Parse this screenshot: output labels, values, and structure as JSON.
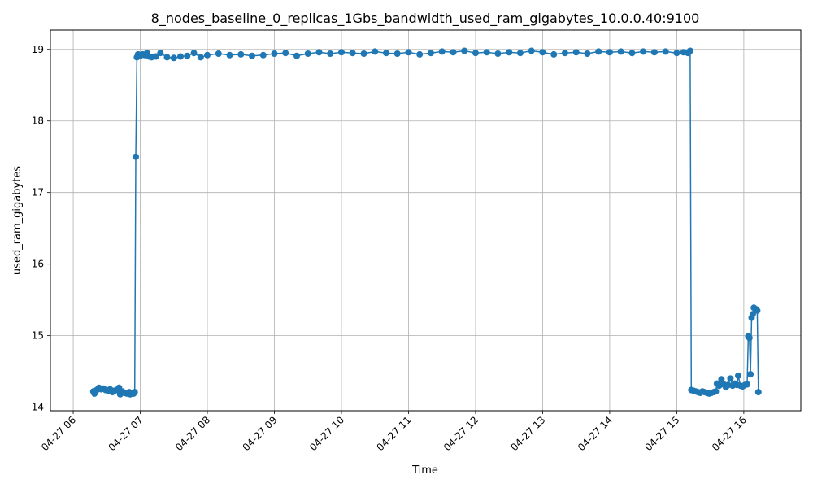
{
  "chart_data": {
    "type": "line",
    "title": "8_nodes_baseline_0_replicas_1Gbs_bandwidth_used_ram_gigabytes_10.0.0.40:9100",
    "xlabel": "Time",
    "ylabel": "used_ram_gigabytes",
    "x_ticks": [
      "04-27 06",
      "04-27 07",
      "04-27 08",
      "04-27 09",
      "04-27 10",
      "04-27 11",
      "04-27 12",
      "04-27 13",
      "04-27 14",
      "04-27 15",
      "04-27 16"
    ],
    "x_tick_hours": [
      6,
      7,
      8,
      9,
      10,
      11,
      12,
      13,
      14,
      15,
      16
    ],
    "xlim_hours": [
      5.66,
      16.85
    ],
    "y_ticks": [
      14,
      15,
      16,
      17,
      18,
      19
    ],
    "ylim": [
      13.95,
      19.27
    ],
    "grid": true,
    "legend": "none",
    "marker": "circle",
    "line_color": "#1f77b4",
    "series": [
      {
        "name": "",
        "points": [
          [
            "04-27 06:18",
            14.22
          ],
          [
            "04-27 06:19",
            14.19
          ],
          [
            "04-27 06:21",
            14.24
          ],
          [
            "04-27 06:23",
            14.27
          ],
          [
            "04-27 06:25",
            14.25
          ],
          [
            "04-27 06:27",
            14.26
          ],
          [
            "04-27 06:29",
            14.24
          ],
          [
            "04-27 06:31",
            14.23
          ],
          [
            "04-27 06:33",
            14.25
          ],
          [
            "04-27 06:35",
            14.21
          ],
          [
            "04-27 06:37",
            14.23
          ],
          [
            "04-27 06:39",
            14.24
          ],
          [
            "04-27 06:41",
            14.27
          ],
          [
            "04-27 06:42",
            14.18
          ],
          [
            "04-27 06:44",
            14.22
          ],
          [
            "04-27 06:46",
            14.2
          ],
          [
            "04-27 06:48",
            14.19
          ],
          [
            "04-27 06:50",
            14.21
          ],
          [
            "04-27 06:51",
            14.18
          ],
          [
            "04-27 06:53",
            14.2
          ],
          [
            "04-27 06:54",
            14.19
          ],
          [
            "04-27 06:55",
            14.21
          ],
          [
            "04-27 06:56",
            17.5
          ],
          [
            "04-27 06:57",
            18.89
          ],
          [
            "04-27 06:58",
            18.93
          ],
          [
            "04-27 07:00",
            18.91
          ],
          [
            "04-27 07:02",
            18.93
          ],
          [
            "04-27 07:04",
            18.92
          ],
          [
            "04-27 07:06",
            18.95
          ],
          [
            "04-27 07:08",
            18.9
          ],
          [
            "04-27 07:10",
            18.89
          ],
          [
            "04-27 07:14",
            18.9
          ],
          [
            "04-27 07:18",
            18.95
          ],
          [
            "04-27 07:24",
            18.89
          ],
          [
            "04-27 07:30",
            18.88
          ],
          [
            "04-27 07:36",
            18.9
          ],
          [
            "04-27 07:42",
            18.91
          ],
          [
            "04-27 07:48",
            18.95
          ],
          [
            "04-27 07:54",
            18.89
          ],
          [
            "04-27 08:00",
            18.92
          ],
          [
            "04-27 08:10",
            18.94
          ],
          [
            "04-27 08:20",
            18.92
          ],
          [
            "04-27 08:30",
            18.93
          ],
          [
            "04-27 08:40",
            18.91
          ],
          [
            "04-27 08:50",
            18.92
          ],
          [
            "04-27 09:00",
            18.94
          ],
          [
            "04-27 09:10",
            18.95
          ],
          [
            "04-27 09:20",
            18.91
          ],
          [
            "04-27 09:30",
            18.94
          ],
          [
            "04-27 09:40",
            18.96
          ],
          [
            "04-27 09:50",
            18.94
          ],
          [
            "04-27 10:00",
            18.96
          ],
          [
            "04-27 10:10",
            18.95
          ],
          [
            "04-27 10:20",
            18.94
          ],
          [
            "04-27 10:30",
            18.97
          ],
          [
            "04-27 10:40",
            18.95
          ],
          [
            "04-27 10:50",
            18.94
          ],
          [
            "04-27 11:00",
            18.96
          ],
          [
            "04-27 11:10",
            18.93
          ],
          [
            "04-27 11:20",
            18.95
          ],
          [
            "04-27 11:30",
            18.97
          ],
          [
            "04-27 11:40",
            18.96
          ],
          [
            "04-27 11:50",
            18.98
          ],
          [
            "04-27 12:00",
            18.95
          ],
          [
            "04-27 12:10",
            18.96
          ],
          [
            "04-27 12:20",
            18.94
          ],
          [
            "04-27 12:30",
            18.96
          ],
          [
            "04-27 12:40",
            18.95
          ],
          [
            "04-27 12:50",
            18.98
          ],
          [
            "04-27 13:00",
            18.96
          ],
          [
            "04-27 13:10",
            18.93
          ],
          [
            "04-27 13:20",
            18.95
          ],
          [
            "04-27 13:30",
            18.96
          ],
          [
            "04-27 13:40",
            18.94
          ],
          [
            "04-27 13:50",
            18.97
          ],
          [
            "04-27 14:00",
            18.96
          ],
          [
            "04-27 14:10",
            18.97
          ],
          [
            "04-27 14:20",
            18.95
          ],
          [
            "04-27 14:30",
            18.97
          ],
          [
            "04-27 14:40",
            18.96
          ],
          [
            "04-27 14:50",
            18.97
          ],
          [
            "04-27 15:00",
            18.95
          ],
          [
            "04-27 15:06",
            18.96
          ],
          [
            "04-27 15:10",
            18.95
          ],
          [
            "04-27 15:12",
            18.98
          ],
          [
            "04-27 15:13",
            14.24
          ],
          [
            "04-27 15:15",
            14.23
          ],
          [
            "04-27 15:17",
            14.22
          ],
          [
            "04-27 15:19",
            14.21
          ],
          [
            "04-27 15:21",
            14.2
          ],
          [
            "04-27 15:23",
            14.22
          ],
          [
            "04-27 15:25",
            14.21
          ],
          [
            "04-27 15:27",
            14.2
          ],
          [
            "04-27 15:29",
            14.19
          ],
          [
            "04-27 15:31",
            14.2
          ],
          [
            "04-27 15:33",
            14.21
          ],
          [
            "04-27 15:35",
            14.22
          ],
          [
            "04-27 15:36",
            14.33
          ],
          [
            "04-27 15:38",
            14.3
          ],
          [
            "04-27 15:40",
            14.39
          ],
          [
            "04-27 15:42",
            14.32
          ],
          [
            "04-27 15:44",
            14.28
          ],
          [
            "04-27 15:46",
            14.31
          ],
          [
            "04-27 15:48",
            14.4
          ],
          [
            "04-27 15:50",
            14.3
          ],
          [
            "04-27 15:52",
            14.33
          ],
          [
            "04-27 15:54",
            14.31
          ],
          [
            "04-27 15:55",
            14.44
          ],
          [
            "04-27 15:57",
            14.3
          ],
          [
            "04-27 15:59",
            14.29
          ],
          [
            "04-27 16:01",
            14.31
          ],
          [
            "04-27 16:03",
            14.32
          ],
          [
            "04-27 16:04",
            14.99
          ],
          [
            "04-27 16:05",
            14.97
          ],
          [
            "04-27 16:06",
            14.46
          ],
          [
            "04-27 16:07",
            15.25
          ],
          [
            "04-27 16:08",
            15.3
          ],
          [
            "04-27 16:09",
            15.39
          ],
          [
            "04-27 16:11",
            15.37
          ],
          [
            "04-27 16:12",
            15.35
          ],
          [
            "04-27 16:13",
            14.21
          ]
        ]
      }
    ]
  }
}
